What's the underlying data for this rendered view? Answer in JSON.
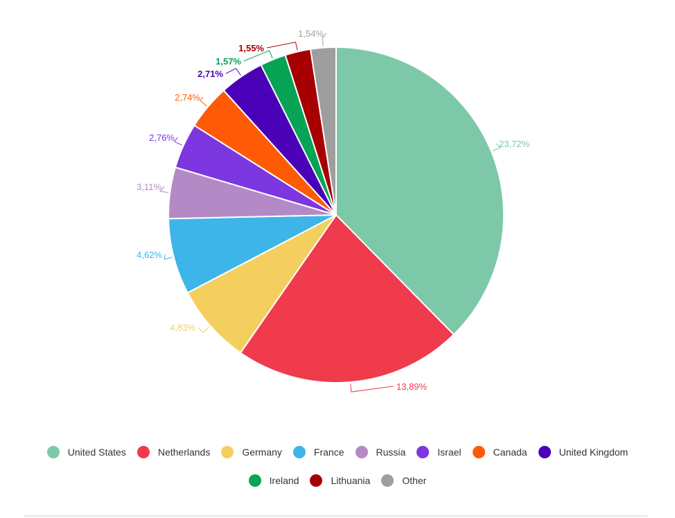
{
  "chart_data": {
    "type": "pie",
    "title": "",
    "start_angle_deg": 0,
    "direction": "clockwise",
    "slices": [
      {
        "name": "United States",
        "value": 23.72,
        "label": "23,72%",
        "color": "#7dc8a8",
        "label_color": "#7dc8a8",
        "label_weight": "normal"
      },
      {
        "name": "Netherlands",
        "value": 13.89,
        "label": "13,89%",
        "color": "#ef3b4c",
        "label_color": "#ef3b4c",
        "label_weight": "normal"
      },
      {
        "name": "Germany",
        "value": 4.83,
        "label": "4,83%",
        "color": "#f4cf60",
        "label_color": "#f4cf60",
        "label_weight": "normal"
      },
      {
        "name": "France",
        "value": 4.62,
        "label": "4,62%",
        "color": "#3db5e8",
        "label_color": "#3db5e8",
        "label_weight": "normal"
      },
      {
        "name": "Russia",
        "value": 3.11,
        "label": "3,11%",
        "color": "#b48ac6",
        "label_color": "#b48ac6",
        "label_weight": "normal"
      },
      {
        "name": "Israel",
        "value": 2.76,
        "label": "2,76%",
        "color": "#7c37e0",
        "label_color": "#7c37e0",
        "label_weight": "normal"
      },
      {
        "name": "Canada",
        "value": 2.74,
        "label": "2,74%",
        "color": "#ff5a05",
        "label_color": "#ff5a05",
        "label_weight": "normal"
      },
      {
        "name": "United Kingdom",
        "value": 2.71,
        "label": "2,71%",
        "color": "#4a00b7",
        "label_color": "#4a00b7",
        "label_weight": "bold"
      },
      {
        "name": "Ireland",
        "value": 1.57,
        "label": "1,57%",
        "color": "#07a455",
        "label_color": "#07a455",
        "label_weight": "bold"
      },
      {
        "name": "Lithuania",
        "value": 1.55,
        "label": "1,55%",
        "color": "#a60003",
        "label_color": "#a60003",
        "label_weight": "bold"
      },
      {
        "name": "Other",
        "value": 1.54,
        "label": "1,54%",
        "color": "#9e9e9e",
        "label_color": "#9e9e9e",
        "label_weight": "normal"
      }
    ],
    "legend": {
      "placement": "bottom",
      "rows": [
        [
          "United States",
          "Netherlands",
          "Germany",
          "France",
          "Russia",
          "Israel",
          "Canada",
          "United Kingdom"
        ],
        [
          "Ireland",
          "Lithuania",
          "Other"
        ]
      ]
    }
  },
  "legend_items": {
    "united_states": "United States",
    "netherlands": "Netherlands",
    "germany": "Germany",
    "france": "France",
    "russia": "Russia",
    "israel": "Israel",
    "canada": "Canada",
    "united_kingdom": "United Kingdom",
    "ireland": "Ireland",
    "lithuania": "Lithuania",
    "other": "Other"
  }
}
